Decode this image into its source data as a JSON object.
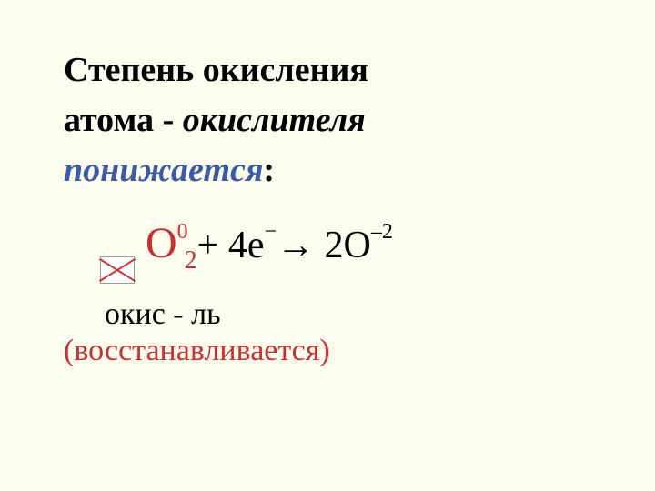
{
  "colors": {
    "background": "#fcfdee",
    "text": "#000000",
    "red": "#c73030",
    "blue": "#3b5ba5",
    "placeholder_border": "#999999",
    "placeholder_bg": "#ffffff"
  },
  "typography": {
    "font_family": "Times New Roman",
    "heading_fontsize": 38,
    "equation_fontsize": 42,
    "label_fontsize": 34
  },
  "heading": {
    "line1a": "Степень  окисления",
    "line2a": "атома - ",
    "line2b_italic": "окислителя",
    "line3_blue_italic": "понижается",
    "line3_colon": ":"
  },
  "equation": {
    "O": "O",
    "sup0": "0",
    "sub2": "2",
    "plus": "  +  4е",
    "e_sup": "−",
    "arrow": "  →  2O",
    "neg2": "–2"
  },
  "label": "окис - ль",
  "restored": "(восстанавливается)"
}
